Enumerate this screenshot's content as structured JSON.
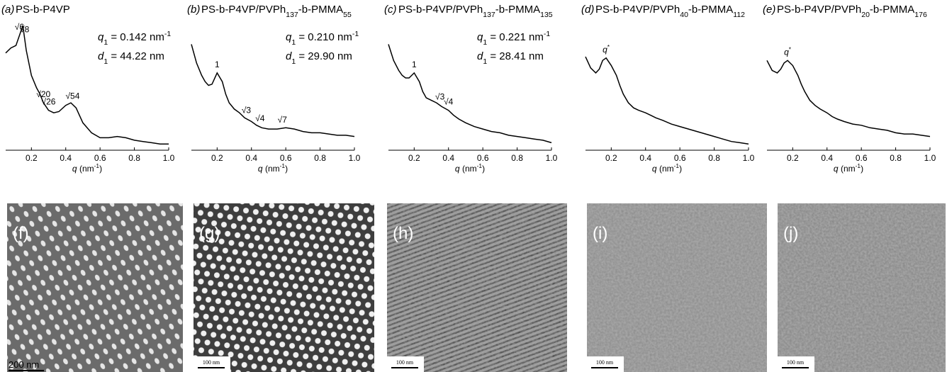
{
  "chart_data": [
    {
      "type": "line",
      "panel": "(a)",
      "title": "PS-b-P4VP",
      "x_label": "q (nm-1)",
      "annotations": [
        "q1 = 0.142 nm-1",
        "d1 = 44.22 nm"
      ],
      "peak_labels": [
        {
          "text": "√6",
          "x": 0.13
        },
        {
          "text": "√8",
          "x": 0.16
        },
        {
          "text": "√20",
          "x": 0.27
        },
        {
          "text": "√26",
          "x": 0.3
        },
        {
          "text": "√54",
          "x": 0.44
        }
      ],
      "x": [
        0.05,
        0.08,
        0.11,
        0.13,
        0.15,
        0.17,
        0.2,
        0.23,
        0.25,
        0.27,
        0.3,
        0.33,
        0.36,
        0.4,
        0.43,
        0.46,
        0.5,
        0.55,
        0.6,
        0.65,
        0.7,
        0.75,
        0.8,
        0.85,
        0.9,
        0.95,
        1.0
      ],
      "values": [
        78,
        82,
        84,
        92,
        100,
        80,
        60,
        50,
        45,
        38,
        32,
        30,
        31,
        36,
        38,
        34,
        22,
        14,
        10,
        10,
        11,
        10,
        8,
        7,
        6,
        5,
        5
      ],
      "color": "#000000",
      "xlim": [
        0.05,
        1.0
      ],
      "ylim": [
        0,
        108
      ],
      "xticks": [
        0.2,
        0.4,
        0.6,
        0.8,
        {
          "value": 1,
          "label": "1.0"
        }
      ]
    },
    {
      "type": "line",
      "panel": "(b)",
      "title": "PS-b-P4VP/PVPh137-b-PMMA55",
      "x_label": "q (nm-1)",
      "annotations": [
        "q1 = 0.210 nm-1",
        "d1 = 29.90 nm"
      ],
      "peak_labels": [
        {
          "text": "1",
          "x": 0.2
        },
        {
          "text": "√3",
          "x": 0.37
        },
        {
          "text": "√4",
          "x": 0.45
        },
        {
          "text": "√7",
          "x": 0.58
        }
      ],
      "x": [
        0.05,
        0.08,
        0.11,
        0.13,
        0.15,
        0.17,
        0.2,
        0.23,
        0.25,
        0.27,
        0.3,
        0.33,
        0.36,
        0.4,
        0.43,
        0.46,
        0.5,
        0.55,
        0.6,
        0.65,
        0.7,
        0.75,
        0.8,
        0.85,
        0.9,
        0.95,
        1.0
      ],
      "values": [
        85,
        70,
        60,
        55,
        52,
        53,
        62,
        55,
        45,
        38,
        33,
        30,
        26,
        23,
        20,
        18,
        17,
        17,
        18,
        17,
        15,
        14,
        14,
        13,
        12,
        12,
        11
      ],
      "color": "#000000",
      "xlim": [
        0.05,
        1.0
      ],
      "ylim": [
        0,
        108
      ],
      "xticks": [
        0.2,
        0.4,
        0.6,
        0.8,
        {
          "value": 1,
          "label": "1.0"
        }
      ]
    },
    {
      "type": "line",
      "panel": "(c)",
      "title": "PS-b-P4VP/PVPh137-b-PMMA135",
      "x_label": "q (nm-1)",
      "annotations": [
        "q1 = 0.221 nm-1",
        "d1 = 28.41 nm"
      ],
      "peak_labels": [
        {
          "text": "1",
          "x": 0.2
        },
        {
          "text": "√3",
          "x": 0.35
        },
        {
          "text": "√4",
          "x": 0.4
        }
      ],
      "x": [
        0.05,
        0.08,
        0.11,
        0.13,
        0.15,
        0.17,
        0.2,
        0.23,
        0.25,
        0.27,
        0.3,
        0.33,
        0.36,
        0.4,
        0.43,
        0.46,
        0.5,
        0.55,
        0.6,
        0.65,
        0.7,
        0.75,
        0.8,
        0.85,
        0.9,
        0.95,
        1.0
      ],
      "values": [
        85,
        72,
        64,
        60,
        58,
        58,
        62,
        55,
        47,
        42,
        40,
        38,
        35,
        32,
        28,
        25,
        22,
        19,
        17,
        15,
        14,
        12,
        11,
        10,
        9,
        8,
        6
      ],
      "color": "#000000",
      "xlim": [
        0.05,
        1.0
      ],
      "ylim": [
        0,
        108
      ],
      "xticks": [
        0.2,
        0.4,
        0.6,
        0.8,
        {
          "value": 1,
          "label": "1.0"
        }
      ]
    },
    {
      "type": "line",
      "panel": "(d)",
      "title": "PS-b-P4VP/PVPh40-b-PMMA112",
      "x_label": "q (nm-1)",
      "annotations": [],
      "peak_labels": [
        {
          "text": "q*",
          "x": 0.17
        }
      ],
      "x": [
        0.05,
        0.08,
        0.11,
        0.13,
        0.15,
        0.17,
        0.2,
        0.23,
        0.25,
        0.27,
        0.3,
        0.33,
        0.36,
        0.4,
        0.43,
        0.46,
        0.5,
        0.55,
        0.6,
        0.65,
        0.7,
        0.75,
        0.8,
        0.85,
        0.9,
        0.95,
        1.0
      ],
      "values": [
        75,
        66,
        62,
        65,
        72,
        74,
        68,
        60,
        52,
        45,
        38,
        34,
        32,
        30,
        28,
        26,
        24,
        21,
        19,
        17,
        15,
        13,
        11,
        9,
        7,
        6,
        5
      ],
      "color": "#000000",
      "xlim": [
        0.05,
        1.0
      ],
      "ylim": [
        0,
        108
      ],
      "xticks": [
        0.2,
        0.4,
        0.6,
        0.8,
        {
          "value": 1,
          "label": "1.0"
        }
      ]
    },
    {
      "type": "line",
      "panel": "(e)",
      "title": "PS-b-P4VP/PVPh20-b-PMMA176",
      "x_label": "q (nm-1)",
      "annotations": [],
      "peak_labels": [
        {
          "text": "q*",
          "x": 0.17
        }
      ],
      "x": [
        0.05,
        0.08,
        0.11,
        0.13,
        0.15,
        0.17,
        0.2,
        0.23,
        0.25,
        0.27,
        0.3,
        0.33,
        0.36,
        0.4,
        0.43,
        0.46,
        0.5,
        0.55,
        0.6,
        0.65,
        0.7,
        0.75,
        0.8,
        0.85,
        0.9,
        0.95,
        1.0
      ],
      "values": [
        72,
        64,
        62,
        65,
        70,
        72,
        68,
        60,
        53,
        47,
        40,
        36,
        33,
        30,
        27,
        25,
        23,
        21,
        20,
        18,
        17,
        16,
        14,
        13,
        13,
        12,
        11
      ],
      "color": "#000000",
      "xlim": [
        0.05,
        1.0
      ],
      "ylim": [
        0,
        108
      ],
      "xticks": [
        0.2,
        0.4,
        0.6,
        0.8,
        {
          "value": 1,
          "label": "1.0"
        }
      ]
    }
  ],
  "images": [
    {
      "label": "(f)",
      "scale_bar": "200 nm"
    },
    {
      "label": "(g)",
      "scale_bar": "100 nm"
    },
    {
      "label": "(h)",
      "scale_bar": "100 nm"
    },
    {
      "label": "(i)",
      "scale_bar": "100 nm"
    },
    {
      "label": "(j)",
      "scale_bar": "100 nm"
    }
  ]
}
